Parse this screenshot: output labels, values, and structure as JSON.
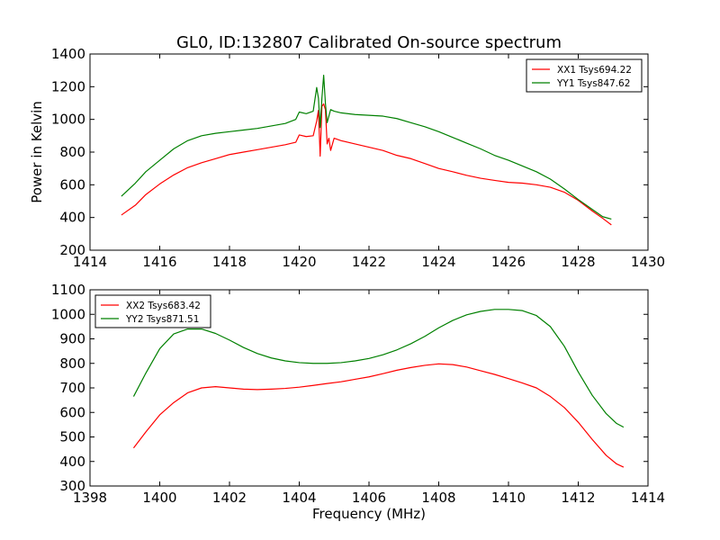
{
  "figure": {
    "title": "GL0, ID:132807 Calibrated On-source spectrum"
  },
  "chart_data": [
    {
      "type": "line",
      "title": "GL0, ID:132807 Calibrated On-source spectrum",
      "xlabel": "",
      "ylabel": "Power in Kelvin",
      "xlim": [
        1414,
        1430
      ],
      "ylim": [
        200,
        1400
      ],
      "xticks": [
        1414,
        1416,
        1418,
        1420,
        1422,
        1424,
        1426,
        1428,
        1430
      ],
      "yticks": [
        200,
        400,
        600,
        800,
        1000,
        1200,
        1400
      ],
      "grid": false,
      "legend_position": "top-right",
      "series": [
        {
          "name": "XX1 Tsys694.22",
          "color": "#ff0000",
          "x": [
            1414.9,
            1415.3,
            1415.6,
            1416.0,
            1416.4,
            1416.8,
            1417.2,
            1417.6,
            1418.0,
            1418.4,
            1418.8,
            1419.2,
            1419.6,
            1419.9,
            1420.0,
            1420.2,
            1420.4,
            1420.5,
            1420.55,
            1420.6,
            1420.65,
            1420.7,
            1420.75,
            1420.8,
            1420.85,
            1420.9,
            1421.0,
            1421.2,
            1421.6,
            1422.0,
            1422.4,
            1422.8,
            1423.2,
            1423.6,
            1424.0,
            1424.4,
            1424.8,
            1425.2,
            1425.6,
            1426.0,
            1426.4,
            1426.8,
            1427.2,
            1427.6,
            1428.0,
            1428.4,
            1428.7,
            1428.95
          ],
          "y": [
            415,
            475,
            540,
            605,
            660,
            705,
            735,
            760,
            785,
            800,
            815,
            830,
            845,
            860,
            905,
            895,
            900,
            990,
            1055,
            775,
            1080,
            1095,
            1060,
            850,
            885,
            810,
            885,
            870,
            850,
            830,
            810,
            780,
            760,
            730,
            700,
            680,
            658,
            640,
            627,
            615,
            610,
            600,
            585,
            555,
            505,
            440,
            395,
            355
          ]
        },
        {
          "name": "YY1 Tsys847.62",
          "color": "#008000",
          "x": [
            1414.9,
            1415.3,
            1415.6,
            1416.0,
            1416.4,
            1416.8,
            1417.2,
            1417.6,
            1418.0,
            1418.4,
            1418.8,
            1419.2,
            1419.6,
            1419.9,
            1420.0,
            1420.2,
            1420.4,
            1420.5,
            1420.55,
            1420.6,
            1420.65,
            1420.7,
            1420.75,
            1420.8,
            1420.9,
            1421.0,
            1421.2,
            1421.6,
            1422.0,
            1422.4,
            1422.8,
            1423.2,
            1423.6,
            1424.0,
            1424.4,
            1424.8,
            1425.2,
            1425.6,
            1426.0,
            1426.4,
            1426.8,
            1427.2,
            1427.6,
            1428.0,
            1428.4,
            1428.7,
            1428.95
          ],
          "y": [
            530,
            610,
            680,
            750,
            820,
            870,
            900,
            915,
            925,
            935,
            945,
            960,
            975,
            1000,
            1045,
            1035,
            1050,
            1195,
            1130,
            950,
            1130,
            1270,
            1100,
            980,
            1060,
            1050,
            1040,
            1030,
            1025,
            1020,
            1005,
            980,
            955,
            925,
            890,
            855,
            820,
            780,
            750,
            715,
            680,
            635,
            575,
            510,
            450,
            405,
            390
          ]
        }
      ]
    },
    {
      "type": "line",
      "title": "",
      "xlabel": "Frequency (MHz)",
      "ylabel": "",
      "xlim": [
        1398,
        1414
      ],
      "ylim": [
        300,
        1100
      ],
      "xticks": [
        1398,
        1400,
        1402,
        1404,
        1406,
        1408,
        1410,
        1412,
        1414
      ],
      "yticks": [
        300,
        400,
        500,
        600,
        700,
        800,
        900,
        1000,
        1100
      ],
      "grid": false,
      "legend_position": "top-left",
      "series": [
        {
          "name": "XX2 Tsys683.42",
          "color": "#ff0000",
          "x": [
            1399.25,
            1399.6,
            1400.0,
            1400.4,
            1400.8,
            1401.2,
            1401.6,
            1402.0,
            1402.4,
            1402.8,
            1403.2,
            1403.6,
            1404.0,
            1404.4,
            1404.8,
            1405.2,
            1405.6,
            1406.0,
            1406.4,
            1406.8,
            1407.2,
            1407.6,
            1408.0,
            1408.4,
            1408.8,
            1409.2,
            1409.6,
            1410.0,
            1410.4,
            1410.8,
            1411.2,
            1411.6,
            1412.0,
            1412.4,
            1412.8,
            1413.1,
            1413.3
          ],
          "y": [
            455,
            520,
            590,
            640,
            680,
            700,
            705,
            700,
            695,
            693,
            695,
            698,
            703,
            710,
            718,
            725,
            735,
            745,
            758,
            772,
            783,
            792,
            798,
            795,
            785,
            770,
            755,
            738,
            720,
            700,
            665,
            620,
            560,
            490,
            425,
            390,
            377
          ]
        },
        {
          "name": "YY2 Tsys871.51",
          "color": "#008000",
          "x": [
            1399.25,
            1399.6,
            1400.0,
            1400.4,
            1400.8,
            1401.2,
            1401.6,
            1402.0,
            1402.4,
            1402.8,
            1403.2,
            1403.6,
            1404.0,
            1404.4,
            1404.8,
            1405.2,
            1405.6,
            1406.0,
            1406.4,
            1406.8,
            1407.2,
            1407.6,
            1408.0,
            1408.4,
            1408.8,
            1409.2,
            1409.6,
            1410.0,
            1410.4,
            1410.8,
            1411.2,
            1411.6,
            1412.0,
            1412.4,
            1412.8,
            1413.1,
            1413.3
          ],
          "y": [
            665,
            760,
            860,
            920,
            940,
            940,
            922,
            895,
            865,
            840,
            822,
            810,
            803,
            800,
            800,
            803,
            810,
            820,
            835,
            855,
            880,
            910,
            945,
            975,
            998,
            1012,
            1020,
            1020,
            1015,
            995,
            950,
            870,
            765,
            670,
            595,
            555,
            540
          ]
        }
      ]
    }
  ]
}
